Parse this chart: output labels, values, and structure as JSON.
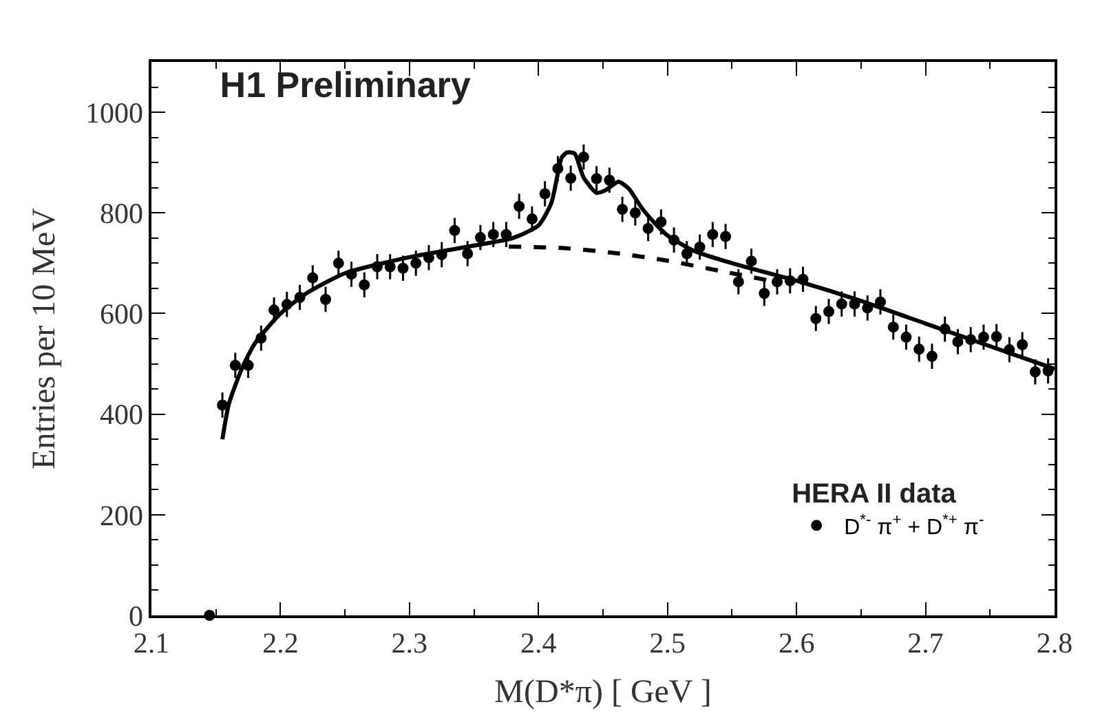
{
  "chart_data": {
    "type": "scatter",
    "title": "H1 Preliminary",
    "xlabel": "M(D*π) [ GeV ]",
    "ylabel": "Entries per 10 MeV",
    "legend_title": "HERA II data",
    "legend": "bottom right",
    "xlim": [
      2.1,
      2.8
    ],
    "xticks": [
      2.1,
      2.2,
      2.3,
      2.4,
      2.5,
      2.6,
      2.7,
      2.8
    ],
    "ylim": [
      0,
      1100
    ],
    "yticks": [
      0,
      200,
      400,
      600,
      800,
      1000
    ],
    "series": [
      {
        "name": "D$^{*-}$ π$^{+}$ + D$^{*+}$ π$^{-}$",
        "marker": "circle",
        "color": "#000000",
        "x": [
          2.145,
          2.155,
          2.165,
          2.175,
          2.185,
          2.195,
          2.205,
          2.215,
          2.225,
          2.235,
          2.245,
          2.255,
          2.265,
          2.275,
          2.285,
          2.295,
          2.305,
          2.315,
          2.325,
          2.335,
          2.345,
          2.355,
          2.365,
          2.375,
          2.385,
          2.395,
          2.405,
          2.415,
          2.425,
          2.435,
          2.445,
          2.455,
          2.465,
          2.475,
          2.485,
          2.495,
          2.505,
          2.515,
          2.525,
          2.535,
          2.545,
          2.555,
          2.565,
          2.575,
          2.585,
          2.595,
          2.605,
          2.615,
          2.625,
          2.635,
          2.645,
          2.655,
          2.665,
          2.675,
          2.685,
          2.695,
          2.705,
          2.715,
          2.725,
          2.735,
          2.745,
          2.755,
          2.765,
          2.775,
          2.785,
          2.795
        ],
        "values": [
          0,
          418,
          497,
          497,
          551,
          607,
          618,
          632,
          671,
          628,
          700,
          678,
          657,
          693,
          693,
          690,
          700,
          711,
          717,
          765,
          719,
          751,
          757,
          757,
          813,
          788,
          838,
          888,
          869,
          911,
          868,
          865,
          807,
          800,
          769,
          782,
          746,
          719,
          732,
          757,
          753,
          663,
          704,
          640,
          663,
          665,
          668,
          590,
          604,
          619,
          619,
          611,
          623,
          573,
          553,
          529,
          515,
          569,
          544,
          548,
          553,
          554,
          528,
          538,
          484,
          486
        ],
        "errors": [
          null,
          25,
          25,
          25,
          25,
          25,
          25,
          25,
          25,
          25,
          25,
          25,
          25,
          25,
          25,
          25,
          25,
          25,
          25,
          25,
          25,
          25,
          25,
          25,
          25,
          25,
          25,
          25,
          25,
          25,
          25,
          25,
          25,
          25,
          25,
          25,
          25,
          25,
          25,
          25,
          25,
          25,
          25,
          25,
          25,
          25,
          25,
          25,
          25,
          25,
          25,
          25,
          25,
          25,
          25,
          25,
          25,
          25,
          25,
          25,
          25,
          25,
          25,
          25,
          25,
          25
        ]
      },
      {
        "type": "line",
        "line_style": "solid",
        "color": "#000000",
        "x": [
          2.155,
          2.16,
          2.17,
          2.18,
          2.2,
          2.22,
          2.25,
          2.3,
          2.35,
          2.38,
          2.4,
          2.41,
          2.418,
          2.422,
          2.428,
          2.435,
          2.445,
          2.452,
          2.462,
          2.47,
          2.48,
          2.49,
          2.5,
          2.52,
          2.55,
          2.6,
          2.65,
          2.7,
          2.75,
          2.8
        ],
        "values": [
          350,
          420,
          490,
          540,
          600,
          640,
          680,
          712,
          735,
          750,
          775,
          820,
          910,
          920,
          918,
          870,
          840,
          845,
          862,
          848,
          810,
          780,
          755,
          725,
          700,
          665,
          625,
          580,
          535,
          490
        ]
      },
      {
        "type": "line",
        "line_style": "dashed",
        "color": "#000000",
        "x": [
          2.377,
          2.42,
          2.46,
          2.5,
          2.54,
          2.58
        ],
        "values": [
          733,
          730,
          720,
          705,
          685,
          665
        ]
      }
    ]
  }
}
